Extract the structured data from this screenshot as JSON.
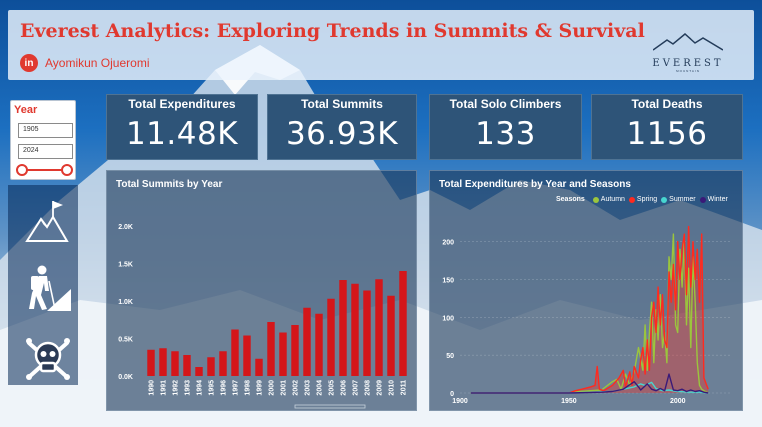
{
  "header": {
    "title": "Everest Analytics: Exploring Trends in Summits & Survival",
    "author": "Ayomikun Ojueromi",
    "linkedin_label": "in",
    "logo_word": "EVEREST",
    "logo_sub": "MOUNTAIN"
  },
  "slicer": {
    "title": "Year",
    "start_year": "1905",
    "end_year": "2024"
  },
  "sidebar": {
    "icons": [
      "summit-flag-icon",
      "climber-icon",
      "skull-crossbones-icon"
    ]
  },
  "kpis": [
    {
      "label": "Total Expenditures",
      "value": "11.48K"
    },
    {
      "label": "Total Summits",
      "value": "36.93K"
    },
    {
      "label": "Total Solo Climbers",
      "value": "133"
    },
    {
      "label": "Total Deaths",
      "value": "1156"
    }
  ],
  "colors": {
    "accent": "#e0392f",
    "bar": "#d4161a",
    "kpi_bg": "#2e5478",
    "autumn": "#9bc53d",
    "spring": "#ff2a1f",
    "summer": "#47d6d0",
    "winter": "#3a1a78"
  },
  "chart_data": [
    {
      "type": "bar",
      "title": "Total Summits by Year",
      "categories": [
        "1990",
        "1991",
        "1992",
        "1993",
        "1994",
        "1995",
        "1996",
        "1997",
        "1998",
        "1999",
        "2000",
        "2001",
        "2002",
        "2003",
        "2004",
        "2005",
        "2006",
        "2007",
        "2008",
        "2009",
        "2010",
        "2011"
      ],
      "values": [
        350,
        370,
        330,
        280,
        120,
        250,
        330,
        620,
        540,
        230,
        720,
        580,
        680,
        910,
        830,
        1030,
        1280,
        1230,
        1140,
        1290,
        1070,
        1400
      ],
      "yticks": [
        "0.0K",
        "0.5K",
        "1.0K",
        "1.5K",
        "2.0K"
      ],
      "ylim": [
        0,
        2000
      ],
      "grid": false
    },
    {
      "type": "line",
      "title": "Total Expenditures by Year and Seasons",
      "legend_title": "Seasons",
      "legend_placement": "top",
      "x_ticks": [
        "1900",
        "1950",
        "2000"
      ],
      "y_ticks": [
        "0",
        "50",
        "100",
        "150",
        "200"
      ],
      "xlim": [
        1900,
        2024
      ],
      "ylim": [
        0,
        230
      ],
      "grid": true,
      "series": [
        {
          "name": "Autumn",
          "color": "#9bc53d",
          "points": [
            [
              1905,
              0
            ],
            [
              1950,
              0
            ],
            [
              1955,
              2
            ],
            [
              1960,
              3
            ],
            [
              1965,
              4
            ],
            [
              1970,
              15
            ],
            [
              1972,
              18
            ],
            [
              1974,
              5
            ],
            [
              1976,
              25
            ],
            [
              1978,
              10
            ],
            [
              1980,
              28
            ],
            [
              1982,
              60
            ],
            [
              1984,
              30
            ],
            [
              1985,
              90
            ],
            [
              1986,
              30
            ],
            [
              1987,
              80
            ],
            [
              1988,
              120
            ],
            [
              1989,
              40
            ],
            [
              1990,
              110
            ],
            [
              1991,
              70
            ],
            [
              1992,
              130
            ],
            [
              1993,
              60
            ],
            [
              1994,
              80
            ],
            [
              1995,
              40
            ],
            [
              1996,
              180
            ],
            [
              1997,
              150
            ],
            [
              1998,
              210
            ],
            [
              1999,
              90
            ],
            [
              2000,
              80
            ],
            [
              2001,
              190
            ],
            [
              2002,
              140
            ],
            [
              2003,
              200
            ],
            [
              2004,
              90
            ],
            [
              2005,
              165
            ],
            [
              2006,
              60
            ],
            [
              2007,
              180
            ],
            [
              2008,
              120
            ],
            [
              2009,
              40
            ],
            [
              2010,
              10
            ],
            [
              2011,
              5
            ],
            [
              2012,
              3
            ],
            [
              2014,
              0
            ]
          ]
        },
        {
          "name": "Spring",
          "color": "#ff2a1f",
          "points": [
            [
              1905,
              0
            ],
            [
              1950,
              0
            ],
            [
              1953,
              3
            ],
            [
              1956,
              5
            ],
            [
              1960,
              8
            ],
            [
              1962,
              10
            ],
            [
              1963,
              35
            ],
            [
              1964,
              5
            ],
            [
              1966,
              3
            ],
            [
              1970,
              10
            ],
            [
              1973,
              20
            ],
            [
              1975,
              30
            ],
            [
              1976,
              8
            ],
            [
              1978,
              28
            ],
            [
              1979,
              10
            ],
            [
              1980,
              35
            ],
            [
              1982,
              20
            ],
            [
              1983,
              45
            ],
            [
              1984,
              60
            ],
            [
              1985,
              25
            ],
            [
              1986,
              70
            ],
            [
              1987,
              30
            ],
            [
              1988,
              100
            ],
            [
              1989,
              120
            ],
            [
              1990,
              80
            ],
            [
              1991,
              140
            ],
            [
              1992,
              90
            ],
            [
              1993,
              130
            ],
            [
              1994,
              70
            ],
            [
              1995,
              60
            ],
            [
              1996,
              160
            ],
            [
              1997,
              120
            ],
            [
              1998,
              170
            ],
            [
              1999,
              110
            ],
            [
              2000,
              200
            ],
            [
              2001,
              150
            ],
            [
              2002,
              190
            ],
            [
              2003,
              210
            ],
            [
              2004,
              130
            ],
            [
              2005,
              220
            ],
            [
              2006,
              140
            ],
            [
              2007,
              200
            ],
            [
              2008,
              150
            ],
            [
              2009,
              190
            ],
            [
              2010,
              120
            ],
            [
              2011,
              210
            ],
            [
              2012,
              20
            ],
            [
              2014,
              5
            ]
          ]
        },
        {
          "name": "Summer",
          "color": "#47d6d0",
          "points": [
            [
              1905,
              0
            ],
            [
              1950,
              0
            ],
            [
              1960,
              1
            ],
            [
              1970,
              2
            ],
            [
              1975,
              5
            ],
            [
              1980,
              8
            ],
            [
              1983,
              12
            ],
            [
              1985,
              10
            ],
            [
              1988,
              14
            ],
            [
              1990,
              6
            ],
            [
              1993,
              3
            ],
            [
              1996,
              4
            ],
            [
              2000,
              2
            ],
            [
              2005,
              1
            ],
            [
              2010,
              1
            ],
            [
              2014,
              0
            ]
          ]
        },
        {
          "name": "Winter",
          "color": "#3a1a78",
          "points": [
            [
              1905,
              0
            ],
            [
              1950,
              0
            ],
            [
              1965,
              1
            ],
            [
              1970,
              2
            ],
            [
              1975,
              5
            ],
            [
              1980,
              15
            ],
            [
              1982,
              8
            ],
            [
              1983,
              4
            ],
            [
              1986,
              12
            ],
            [
              1988,
              5
            ],
            [
              1990,
              3
            ],
            [
              1992,
              6
            ],
            [
              1994,
              3
            ],
            [
              1996,
              25
            ],
            [
              1998,
              4
            ],
            [
              2000,
              3
            ],
            [
              2002,
              5
            ],
            [
              2004,
              2
            ],
            [
              2006,
              4
            ],
            [
              2008,
              2
            ],
            [
              2010,
              3
            ],
            [
              2012,
              1
            ],
            [
              2014,
              0
            ]
          ]
        }
      ]
    }
  ]
}
